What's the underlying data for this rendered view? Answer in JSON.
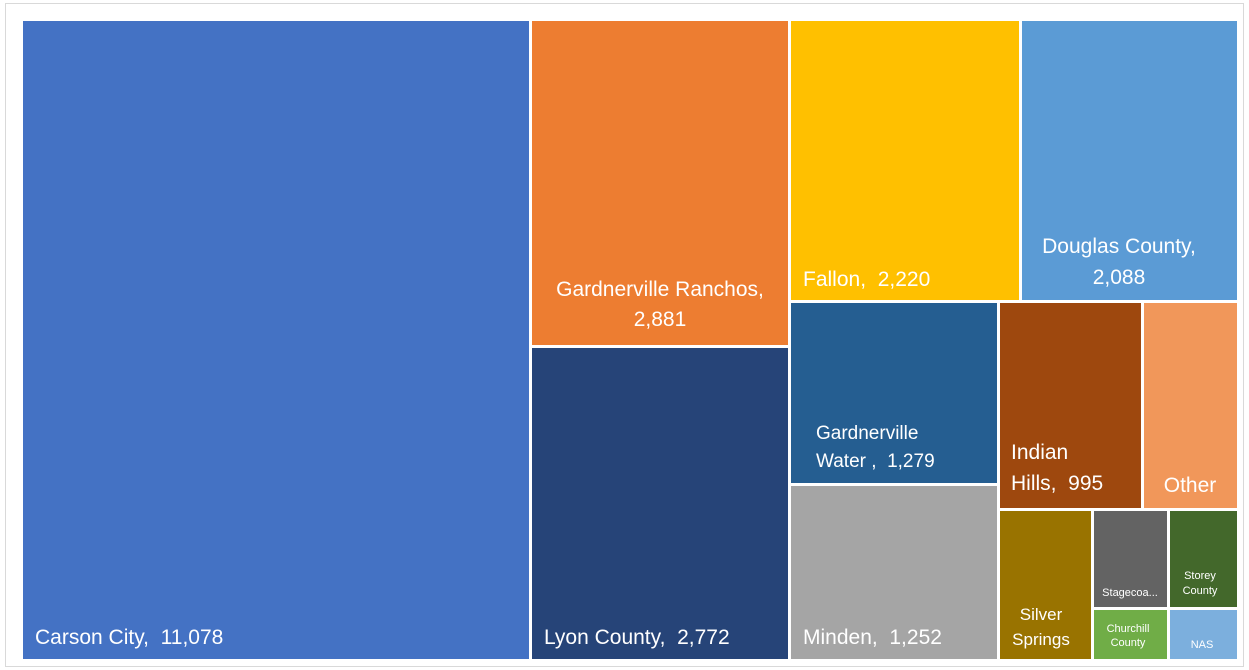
{
  "chart_data": {
    "type": "treemap",
    "title": "",
    "items": [
      {
        "name": "Carson City",
        "label": "Carson City,  11,078",
        "value": 11078,
        "color": "#4472c4"
      },
      {
        "name": "Gardnerville Ranchos",
        "label": "Gardnerville Ranchos,|2,881",
        "value": 2881,
        "color": "#ed7d31"
      },
      {
        "name": "Lyon County",
        "label": "Lyon County,  2,772",
        "value": 2772,
        "color": "#264478"
      },
      {
        "name": "Fallon",
        "label": "Fallon,  2,220",
        "value": 2220,
        "color": "#ffc000"
      },
      {
        "name": "Douglas County",
        "label": "Douglas County,|2,088",
        "value": 2088,
        "color": "#5b9bd5"
      },
      {
        "name": "Gardnerville Water",
        "label": "Gardnerville|Water ,  1,279",
        "value": 1279,
        "color": "#255e91"
      },
      {
        "name": "Minden",
        "label": "Minden,  1,252",
        "value": 1252,
        "color": "#a5a5a5"
      },
      {
        "name": "Indian Hills",
        "label": "Indian|Hills,  995",
        "value": 995,
        "color": "#9e480e"
      },
      {
        "name": "Other",
        "label": "Other",
        "value": null,
        "color": "#f1975a"
      },
      {
        "name": "Silver Springs",
        "label": "Silver|Springs",
        "value": null,
        "color": "#997300"
      },
      {
        "name": "Stagecoach",
        "label": "Stagecoa...",
        "value": null,
        "color": "#636363"
      },
      {
        "name": "Storey County",
        "label": "Storey|County",
        "value": null,
        "color": "#43682b"
      },
      {
        "name": "Churchill County",
        "label": "Churchill|County",
        "value": null,
        "color": "#70ad47"
      },
      {
        "name": "NAS",
        "label": "NAS",
        "value": null,
        "color": "#7cafdd"
      }
    ]
  }
}
